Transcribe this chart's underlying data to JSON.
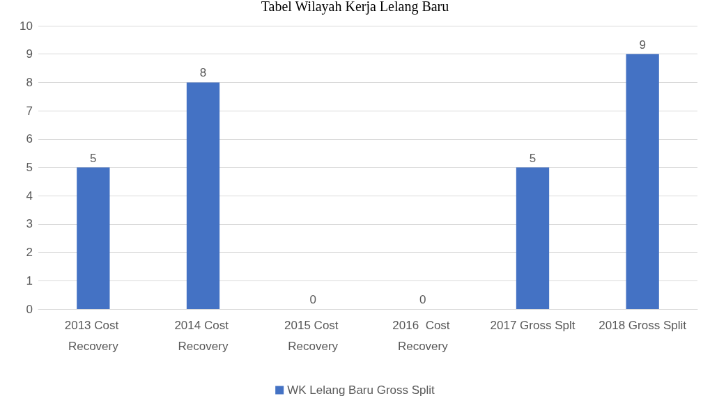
{
  "chart_data": {
    "type": "bar",
    "title": "Tabel Wilayah Kerja Lelang Baru",
    "categories": [
      "2013 Cost Recovery",
      "2014 Cost Recovery",
      "2015 Cost Recovery",
      "2016  Cost Recovery",
      "2017 Gross Splt",
      "2018 Gross Split"
    ],
    "series": [
      {
        "name": "WK Lelang Baru Gross Split",
        "color": "#4472c4",
        "values": [
          5,
          8,
          0,
          0,
          5,
          9
        ]
      }
    ],
    "ylim": [
      0,
      10
    ],
    "yticks": [
      0,
      1,
      2,
      3,
      4,
      5,
      6,
      7,
      8,
      9,
      10
    ],
    "grid": "y",
    "legend": "bottom",
    "data_labels": true
  }
}
